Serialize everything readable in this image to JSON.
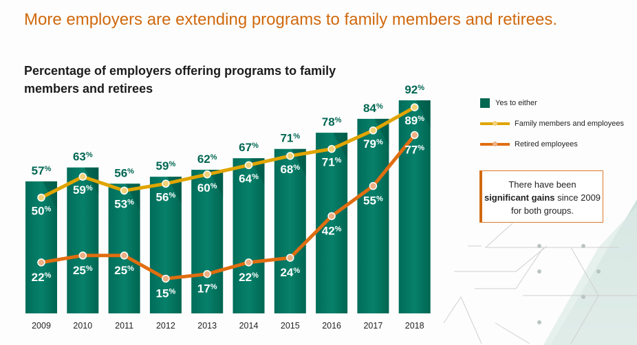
{
  "headline": "More employers are extending programs to family members and retirees.",
  "colors": {
    "bar": "#006f5c",
    "family": "#e0a400",
    "retired": "#e06d10",
    "headline": "#d0690e",
    "bar_label": "#006752"
  },
  "callout": {
    "pre": "There have been",
    "bold": "significant gains",
    "post": "since 2009 for both groups."
  },
  "chart_data": {
    "type": "bar",
    "title": "Percentage of employers offering programs to family members and retirees",
    "xlabel": "",
    "ylabel": "",
    "ylim": [
      0,
      100
    ],
    "grid": false,
    "legend_position": "right",
    "categories": [
      "2009",
      "2010",
      "2011",
      "2012",
      "2013",
      "2014",
      "2015",
      "2016",
      "2017",
      "2018"
    ],
    "series": [
      {
        "name": "Yes to either",
        "kind": "bar",
        "values": [
          57,
          63,
          56,
          59,
          62,
          67,
          71,
          78,
          84,
          92
        ]
      },
      {
        "name": "Family members and employees",
        "kind": "line",
        "values": [
          50,
          59,
          53,
          56,
          60,
          64,
          68,
          71,
          79,
          89
        ]
      },
      {
        "name": "Retired employees",
        "kind": "line",
        "values": [
          22,
          25,
          25,
          15,
          17,
          22,
          24,
          42,
          55,
          77
        ]
      }
    ],
    "value_suffix": "%"
  }
}
